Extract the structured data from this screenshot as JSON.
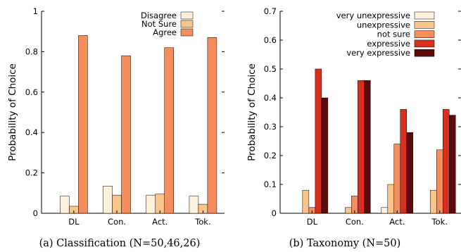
{
  "chart_data": [
    {
      "type": "bar",
      "categories": [
        "DL",
        "Con.",
        "Act.",
        "Tok."
      ],
      "series": [
        {
          "name": "Disagree",
          "color": "#fdf0dc",
          "values": [
            0.085,
            0.135,
            0.09,
            0.085
          ]
        },
        {
          "name": "Not Sure",
          "color": "#f9c58b",
          "values": [
            0.035,
            0.09,
            0.095,
            0.045
          ]
        },
        {
          "name": "Agree",
          "color": "#f68d5c",
          "values": [
            0.88,
            0.78,
            0.82,
            0.87
          ]
        }
      ],
      "ylabel": "Probability of Choice",
      "ylim": [
        0,
        1
      ],
      "yticks": [
        "0",
        "0.2",
        "0.4",
        "0.6",
        "0.8",
        "1"
      ],
      "legend_position": "top-right",
      "grid": false,
      "caption": "(a) Classification (N=50,46,26)"
    },
    {
      "type": "bar",
      "categories": [
        "DL",
        "Con.",
        "Act.",
        "Tok."
      ],
      "series": [
        {
          "name": "very unexpressive",
          "color": "#fdf0dc",
          "values": [
            0.0,
            0.0,
            0.02,
            0.0
          ]
        },
        {
          "name": "unexpressive",
          "color": "#f9c58b",
          "values": [
            0.08,
            0.02,
            0.1,
            0.08
          ]
        },
        {
          "name": "not sure",
          "color": "#f68d5c",
          "values": [
            0.02,
            0.06,
            0.24,
            0.22
          ]
        },
        {
          "name": "expressive",
          "color": "#d7301f",
          "values": [
            0.5,
            0.46,
            0.36,
            0.36
          ]
        },
        {
          "name": "very expressive",
          "color": "#5c0a0a",
          "values": [
            0.4,
            0.46,
            0.28,
            0.34
          ]
        }
      ],
      "ylabel": "Probability of Choice",
      "ylim": [
        0,
        0.7
      ],
      "yticks": [
        "0",
        "0.1",
        "0.2",
        "0.3",
        "0.4",
        "0.5",
        "0.6",
        "0.7"
      ],
      "legend_position": "top-right",
      "grid": false,
      "caption": "(b) Taxonomy (N=50)"
    }
  ]
}
